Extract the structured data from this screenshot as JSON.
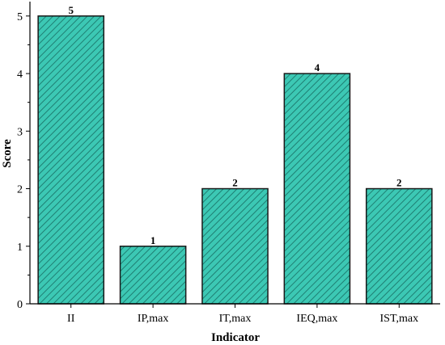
{
  "chart_data": {
    "type": "bar",
    "xlabel": "Indicator",
    "ylabel": "Score",
    "categories": [
      "II",
      "IP,max",
      "IT,max",
      "IEQ,max",
      "IST,max"
    ],
    "values": [
      5,
      1,
      2,
      4,
      2
    ],
    "data_labels": [
      "5",
      "1",
      "2",
      "4",
      "2"
    ],
    "ylim": [
      0,
      5.25
    ],
    "yticks": [
      0,
      1,
      2,
      3,
      4,
      5
    ],
    "ytick_labels": [
      "0",
      "1",
      "2",
      "3",
      "4",
      "5"
    ],
    "grid": false,
    "bar_color": "#3cc8b4",
    "bar_edge_color": "#1a1a1a",
    "bar_pattern": "diagonal-hatch"
  }
}
